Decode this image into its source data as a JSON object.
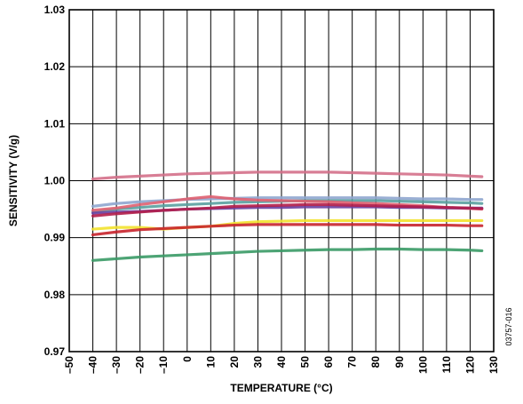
{
  "figure_id": "03757-016",
  "chart_data": {
    "type": "line",
    "title": "",
    "xlabel": "TEMPERATURE (°C)",
    "ylabel": "SENSITIVITY (V/g)",
    "xlim": [
      -50,
      130
    ],
    "ylim": [
      0.97,
      1.03
    ],
    "xticks": [
      -50,
      -40,
      -30,
      -20,
      -10,
      0,
      10,
      20,
      30,
      40,
      50,
      60,
      70,
      80,
      90,
      100,
      110,
      120,
      130
    ],
    "xtick_labels": [
      "–50",
      "–40",
      "–30",
      "–20",
      "–10",
      "0",
      "10",
      "20",
      "30",
      "40",
      "50",
      "60",
      "70",
      "80",
      "90",
      "100",
      "110",
      "120",
      "130"
    ],
    "yticks": [
      0.97,
      0.98,
      0.99,
      1.0,
      1.01,
      1.02,
      1.03
    ],
    "ytick_labels": [
      "0.97",
      "0.98",
      "0.99",
      "1.00",
      "1.01",
      "1.02",
      "1.03"
    ],
    "grid": true,
    "legend": "none",
    "series": [
      {
        "color": "#d4708a",
        "x": [
          -40,
          -30,
          -20,
          -10,
          0,
          10,
          20,
          30,
          40,
          50,
          60,
          70,
          80,
          90,
          100,
          110,
          120,
          125
        ],
        "y": [
          1.0003,
          1.0006,
          1.0008,
          1.001,
          1.0012,
          1.0013,
          1.0014,
          1.0015,
          1.0015,
          1.0015,
          1.0015,
          1.0014,
          1.0013,
          1.0012,
          1.0011,
          1.001,
          1.0008,
          1.0007
        ]
      },
      {
        "color": "#8fa6cf",
        "x": [
          -40,
          -30,
          -20,
          -10,
          0,
          10,
          20,
          30,
          40,
          50,
          60,
          70,
          80,
          90,
          100,
          110,
          120,
          125
        ],
        "y": [
          0.9955,
          0.996,
          0.9963,
          0.9965,
          0.9967,
          0.9968,
          0.9969,
          0.997,
          0.997,
          0.997,
          0.997,
          0.997,
          0.997,
          0.9969,
          0.9968,
          0.9968,
          0.9967,
          0.9967
        ]
      },
      {
        "color": "#5aa0a0",
        "x": [
          -40,
          -30,
          -20,
          -10,
          0,
          10,
          20,
          30,
          40,
          50,
          60,
          70,
          80,
          90,
          100,
          110,
          120,
          125
        ],
        "y": [
          0.9945,
          0.995,
          0.9953,
          0.9956,
          0.9958,
          0.996,
          0.9962,
          0.9963,
          0.9964,
          0.9965,
          0.9965,
          0.9965,
          0.9965,
          0.9964,
          0.9963,
          0.9962,
          0.9961,
          0.996
        ]
      },
      {
        "color": "#e06070",
        "x": [
          -40,
          -30,
          -20,
          -10,
          0,
          10,
          20,
          30,
          40,
          50,
          60,
          70,
          80,
          90,
          100,
          110,
          120,
          125
        ],
        "y": [
          0.9948,
          0.9952,
          0.9958,
          0.9963,
          0.9968,
          0.9972,
          0.9968,
          0.9966,
          0.9965,
          0.9964,
          0.9963,
          0.9961,
          0.996,
          0.9958,
          0.9956,
          0.9953,
          0.9951,
          0.995
        ]
      },
      {
        "color": "#6a3fa0",
        "x": [
          -40,
          -30,
          -20,
          -10,
          0,
          10,
          20,
          30,
          40,
          50,
          60,
          70,
          80,
          90,
          100,
          110,
          120,
          125
        ],
        "y": [
          0.9943,
          0.9945,
          0.9946,
          0.9948,
          0.995,
          0.9951,
          0.9952,
          0.9953,
          0.9953,
          0.9954,
          0.9954,
          0.9954,
          0.9954,
          0.9953,
          0.9953,
          0.9952,
          0.9952,
          0.9952
        ]
      },
      {
        "color": "#b21e4a",
        "x": [
          -40,
          -30,
          -20,
          -10,
          0,
          10,
          20,
          30,
          40,
          50,
          60,
          70,
          80,
          90,
          100,
          110,
          120,
          125
        ],
        "y": [
          0.9938,
          0.9942,
          0.9945,
          0.9948,
          0.995,
          0.9952,
          0.9955,
          0.9956,
          0.9957,
          0.9958,
          0.9958,
          0.9957,
          0.9956,
          0.9955,
          0.9954,
          0.9953,
          0.9952,
          0.9951
        ]
      },
      {
        "color": "#f2e22e",
        "x": [
          -40,
          -30,
          -20,
          -10,
          0,
          10,
          20,
          30,
          40,
          50,
          60,
          70,
          80,
          90,
          100,
          110,
          120,
          125
        ],
        "y": [
          0.9915,
          0.9918,
          0.9918,
          0.9915,
          0.9918,
          0.992,
          0.9925,
          0.9928,
          0.9929,
          0.993,
          0.993,
          0.993,
          0.993,
          0.993,
          0.993,
          0.993,
          0.993,
          0.993
        ]
      },
      {
        "color": "#c8242c",
        "x": [
          -40,
          -30,
          -20,
          -10,
          0,
          10,
          20,
          30,
          40,
          50,
          60,
          70,
          80,
          90,
          100,
          110,
          120,
          125
        ],
        "y": [
          0.9905,
          0.991,
          0.9914,
          0.9916,
          0.9918,
          0.992,
          0.9922,
          0.9923,
          0.9923,
          0.9923,
          0.9923,
          0.9923,
          0.9923,
          0.9922,
          0.9922,
          0.9922,
          0.9921,
          0.9921
        ]
      },
      {
        "color": "#3a9a66",
        "x": [
          -40,
          -30,
          -20,
          -10,
          0,
          10,
          20,
          30,
          40,
          50,
          60,
          70,
          80,
          90,
          100,
          110,
          120,
          125
        ],
        "y": [
          0.986,
          0.9863,
          0.9866,
          0.9868,
          0.987,
          0.9872,
          0.9874,
          0.9876,
          0.9877,
          0.9878,
          0.9879,
          0.9879,
          0.988,
          0.988,
          0.9879,
          0.9879,
          0.9878,
          0.9877
        ]
      }
    ]
  }
}
